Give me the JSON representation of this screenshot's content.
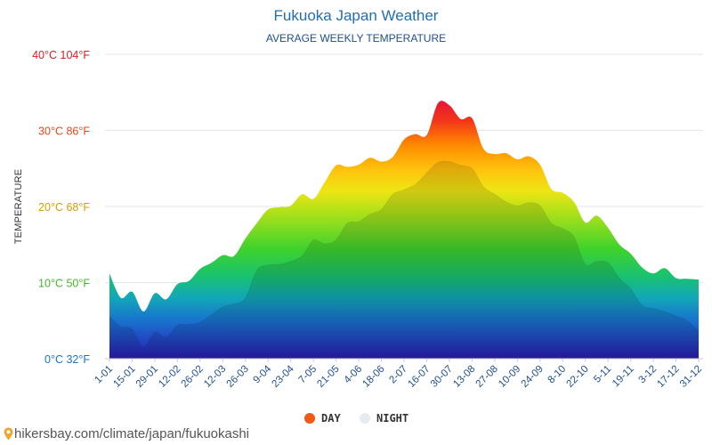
{
  "chart_data": {
    "type": "area",
    "title": "Fukuoka Japan Weather",
    "subtitle": "AVERAGE WEEKLY TEMPERATURE",
    "ylabel": "TEMPERATURE",
    "ylim": [
      0,
      40
    ],
    "y_ticks": [
      {
        "value": 0,
        "label": "0°C 32°F",
        "color": "#1a73c7"
      },
      {
        "value": 10,
        "label": "10°C 50°F",
        "color": "#44b82a"
      },
      {
        "value": 20,
        "label": "20°C 68°F",
        "color": "#d4a000"
      },
      {
        "value": 30,
        "label": "30°C 86°F",
        "color": "#e8471c"
      },
      {
        "value": 40,
        "label": "40°C 104°F",
        "color": "#e01b24"
      }
    ],
    "x": [
      "1-01",
      "8-01",
      "15-01",
      "22-01",
      "29-01",
      "5-02",
      "12-02",
      "19-02",
      "26-02",
      "5-03",
      "12-03",
      "19-03",
      "26-03",
      "2-04",
      "9-04",
      "16-04",
      "23-04",
      "30-04",
      "7-05",
      "14-05",
      "21-05",
      "28-05",
      "4-06",
      "11-06",
      "18-06",
      "25-06",
      "2-07",
      "9-07",
      "16-07",
      "23-07",
      "30-07",
      "6-08",
      "13-08",
      "20-08",
      "27-08",
      "3-09",
      "10-09",
      "17-09",
      "24-09",
      "1-10",
      "8-10",
      "15-10",
      "22-10",
      "29-10",
      "5-11",
      "12-11",
      "19-11",
      "26-11",
      "3-12",
      "10-12",
      "17-12",
      "24-12",
      "31-12"
    ],
    "x_tick_labels": [
      "1-01",
      "15-01",
      "29-01",
      "12-02",
      "26-02",
      "12-03",
      "26-03",
      "9-04",
      "23-04",
      "7-05",
      "21-05",
      "4-06",
      "18-06",
      "2-07",
      "16-07",
      "30-07",
      "13-08",
      "27-08",
      "10-09",
      "24-09",
      "8-10",
      "22-10",
      "5-11",
      "19-11",
      "3-12",
      "17-12",
      "31-12"
    ],
    "series": [
      {
        "name": "DAY",
        "color": "#f05a14",
        "values": [
          11.2,
          8.0,
          8.8,
          6.2,
          8.6,
          7.8,
          9.8,
          10.2,
          11.8,
          12.6,
          13.6,
          13.5,
          15.8,
          17.8,
          19.6,
          19.9,
          20.1,
          21.6,
          21.0,
          23.2,
          25.4,
          25.2,
          25.5,
          26.4,
          25.9,
          26.5,
          28.8,
          29.5,
          29.4,
          33.6,
          33.3,
          31.5,
          31.6,
          27.6,
          26.9,
          27.0,
          26.2,
          26.6,
          25.5,
          22.3,
          21.8,
          20.6,
          17.9,
          18.8,
          17.2,
          15.0,
          13.8,
          12.0,
          11.2,
          11.9,
          10.6,
          10.5,
          10.4
        ]
      },
      {
        "name": "NIGHT",
        "color": "#e6ebf2",
        "values": [
          5.6,
          4.2,
          3.9,
          1.5,
          3.5,
          2.8,
          4.4,
          4.5,
          4.8,
          5.8,
          6.8,
          7.2,
          8.0,
          11.6,
          12.3,
          12.4,
          12.8,
          13.5,
          15.6,
          15.1,
          15.6,
          17.8,
          18.0,
          19.0,
          19.6,
          21.6,
          22.2,
          22.9,
          24.4,
          25.8,
          25.9,
          25.4,
          25.0,
          22.6,
          21.6,
          20.6,
          20.1,
          20.5,
          20.1,
          17.8,
          17.1,
          16.0,
          12.4,
          12.8,
          12.6,
          10.6,
          9.2,
          7.0,
          6.6,
          6.2,
          5.6,
          5.0,
          3.6
        ]
      }
    ],
    "grid": true,
    "legend_position": "bottom-center"
  },
  "footer": {
    "text": "hikersbay.com/climate/japan/fukuokashi"
  }
}
